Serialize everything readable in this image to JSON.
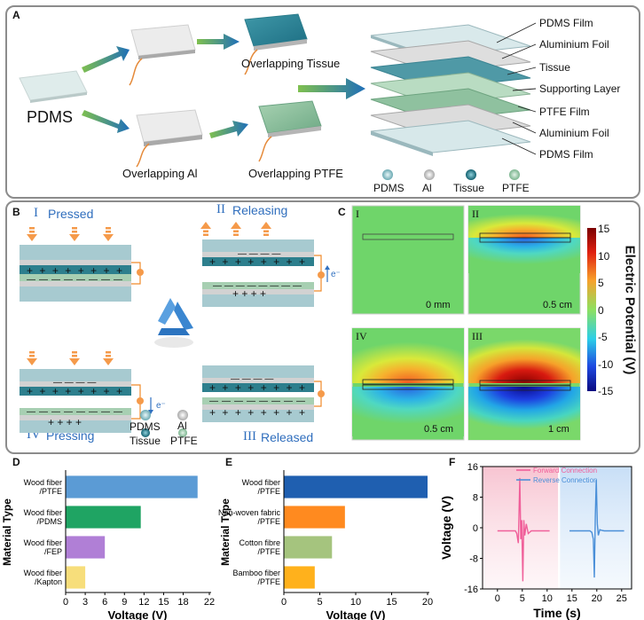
{
  "panel_a": {
    "letter": "A",
    "pdms": "PDMS",
    "ov_tissue": "Overlapping Tissue",
    "ov_al": "Overlapping Al",
    "ov_ptfe": "Overlapping PTFE",
    "layers": [
      "PDMS Film",
      "Aluminium Foil",
      "Tissue",
      "Supporting Layer",
      "PTFE Film",
      "Aluminium Foil",
      "PDMS Film"
    ],
    "legend": [
      {
        "label": "PDMS",
        "color": "#7fb9c0"
      },
      {
        "label": "Al",
        "color": "#d2d2d2"
      },
      {
        "label": "Tissue",
        "color": "#1f7f8c"
      },
      {
        "label": "PTFE",
        "color": "#8fc4a0"
      }
    ]
  },
  "panel_b": {
    "letter": "B",
    "stage1": "I",
    "stage1_label": "Pressed",
    "stage2": "II",
    "stage2_label": "Releasing",
    "stage3": "III",
    "stage3_label": "Released",
    "stage4": "IV",
    "stage4_label": "Pressing",
    "electron": "e⁻",
    "legend": [
      {
        "label": "PDMS",
        "color": "#7fb9c0"
      },
      {
        "label": "Al",
        "color": "#d2d2d2"
      },
      {
        "label": "Tissue",
        "color": "#1f7f8c"
      },
      {
        "label": "PTFE",
        "color": "#8fc4a0"
      }
    ]
  },
  "panel_c": {
    "letter": "C",
    "maps": [
      {
        "roman": "I",
        "dist": "0 mm"
      },
      {
        "roman": "II",
        "dist": "0.5 cm"
      },
      {
        "roman": "IV",
        "dist": "0.5 cm"
      },
      {
        "roman": "III",
        "dist": "1 cm"
      }
    ],
    "colorbar_ticks": [
      "15",
      "10",
      "5",
      "0",
      "-5",
      "-10",
      "-15"
    ],
    "colorbar_title": "Electric Potential (V)"
  },
  "chart_data": [
    {
      "type": "bar",
      "panel": "D",
      "orientation": "horizontal",
      "categories": [
        [
          "Wood fiber",
          "/PTFE"
        ],
        [
          "Wood fiber",
          "/PDMS"
        ],
        [
          "Wood fiber",
          "/FEP"
        ],
        [
          "Wood fiber",
          "/Kapton"
        ]
      ],
      "values": [
        20.2,
        11.5,
        6.0,
        3.0
      ],
      "colors": [
        "#5b9bd5",
        "#1fa463",
        "#b07fd6",
        "#f7de7b"
      ],
      "xlabel": "Voltage (V)",
      "ylabel": "Material Type",
      "xlim": [
        0,
        22
      ],
      "xticks": [
        0,
        3,
        6,
        9,
        12,
        15,
        18,
        22
      ]
    },
    {
      "type": "bar",
      "panel": "E",
      "orientation": "horizontal",
      "categories": [
        [
          "Wood fiber",
          "/PTFE"
        ],
        [
          "Non-woven fabric",
          "/PTFE"
        ],
        [
          "Cotton fibre",
          "/PTFE"
        ],
        [
          "Bamboo fiber",
          "/PTFE"
        ]
      ],
      "values": [
        20.0,
        8.5,
        6.7,
        4.3
      ],
      "colors": [
        "#1f5fb0",
        "#ff8a1f",
        "#a5c47e",
        "#ffb11c"
      ],
      "xlabel": "Voltage (V)",
      "ylabel": "Material Type",
      "xlim": [
        0,
        20
      ],
      "xticks": [
        0,
        5,
        10,
        15,
        20
      ]
    },
    {
      "type": "line",
      "panel": "F",
      "xlabel": "Time (s)",
      "ylabel": "Voltage (V)",
      "xlim": [
        -3,
        27
      ],
      "ylim": [
        -16,
        16
      ],
      "xticks": [
        0,
        5,
        10,
        15,
        20,
        25
      ],
      "yticks": [
        -16,
        -8,
        0,
        8,
        16
      ],
      "legend_position": "top",
      "series": [
        {
          "name": "Forward Connection",
          "color": "#f0609a",
          "x": [
            0,
            3.6,
            3.9,
            4.2,
            4.5,
            4.7,
            4.9,
            5.1,
            5.3,
            5.5,
            5.8,
            6.2,
            6.8,
            7.5,
            10.5
          ],
          "y": [
            -0.8,
            -0.8,
            -1.5,
            -4,
            13,
            -3,
            2,
            -14,
            2,
            -2,
            1,
            -1.5,
            -0.8,
            -0.8,
            -0.8
          ]
        },
        {
          "name": "Reverse Connection",
          "color": "#4a8fd8",
          "x": [
            14.5,
            18.6,
            19.0,
            19.3,
            19.5,
            19.7,
            19.9,
            20.1,
            20.3,
            20.6,
            21.0,
            21.5,
            25.5
          ],
          "y": [
            -0.8,
            -0.8,
            -1.2,
            -3,
            -13,
            3,
            12.5,
            1,
            -2,
            -0.5,
            -0.7,
            -0.8,
            -0.8
          ]
        }
      ]
    }
  ]
}
